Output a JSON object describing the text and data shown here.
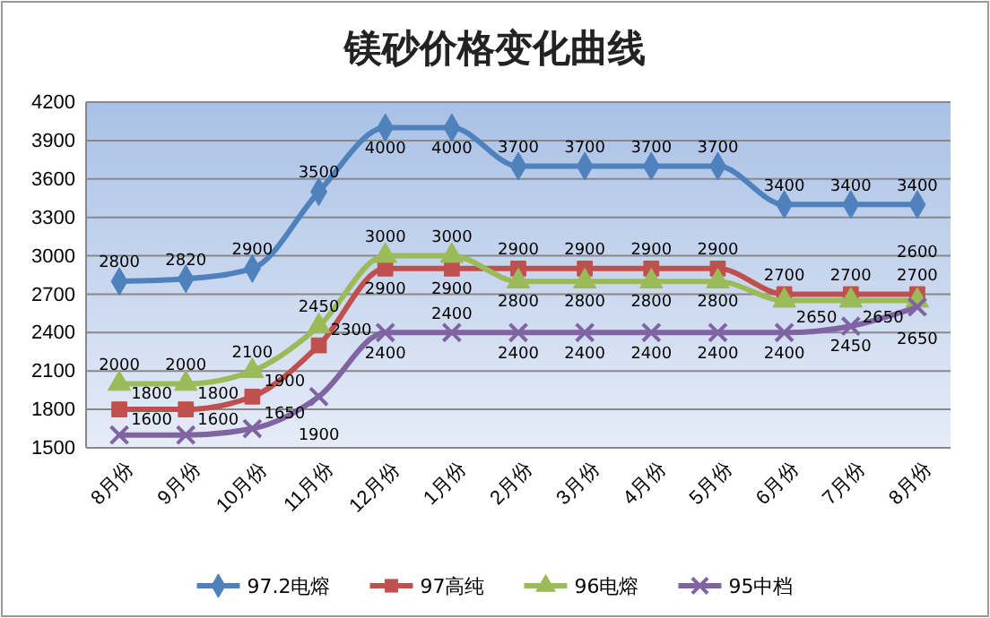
{
  "chart_data": {
    "type": "line",
    "title": "镁砂价格变化曲线",
    "categories": [
      "8月份",
      "9月份",
      "10月份",
      "11月份",
      "12月份",
      "1月份",
      "2月份",
      "3月份",
      "4月份",
      "5月份",
      "6月份",
      "7月份",
      "8月份"
    ],
    "series": [
      {
        "name": "97.2电熔",
        "color": "#4f81bd",
        "marker": "diamond",
        "values": [
          2800,
          2820,
          2900,
          3500,
          4000,
          4000,
          3700,
          3700,
          3700,
          3700,
          3400,
          3400,
          3400
        ]
      },
      {
        "name": "97高纯",
        "color": "#c0504d",
        "marker": "square",
        "values": [
          1800,
          1800,
          1900,
          2300,
          2900,
          2900,
          2900,
          2900,
          2900,
          2900,
          2700,
          2700,
          2700
        ]
      },
      {
        "name": "96电熔",
        "color": "#9bbb59",
        "marker": "triangle",
        "values": [
          2000,
          2000,
          2100,
          2450,
          3000,
          3000,
          2800,
          2800,
          2800,
          2800,
          2650,
          2650,
          2650
        ]
      },
      {
        "name": "95中档",
        "color": "#8064a2",
        "marker": "cross",
        "values": [
          1600,
          1600,
          1650,
          1900,
          2400,
          2400,
          2400,
          2400,
          2400,
          2400,
          2400,
          2450,
          2600
        ]
      }
    ],
    "ylim": [
      1500,
      4200
    ],
    "yticks": [
      1500,
      1800,
      2100,
      2400,
      2700,
      3000,
      3300,
      3600,
      3900,
      4200
    ],
    "grid": "y",
    "legend": "bottom",
    "data_labels": true
  }
}
